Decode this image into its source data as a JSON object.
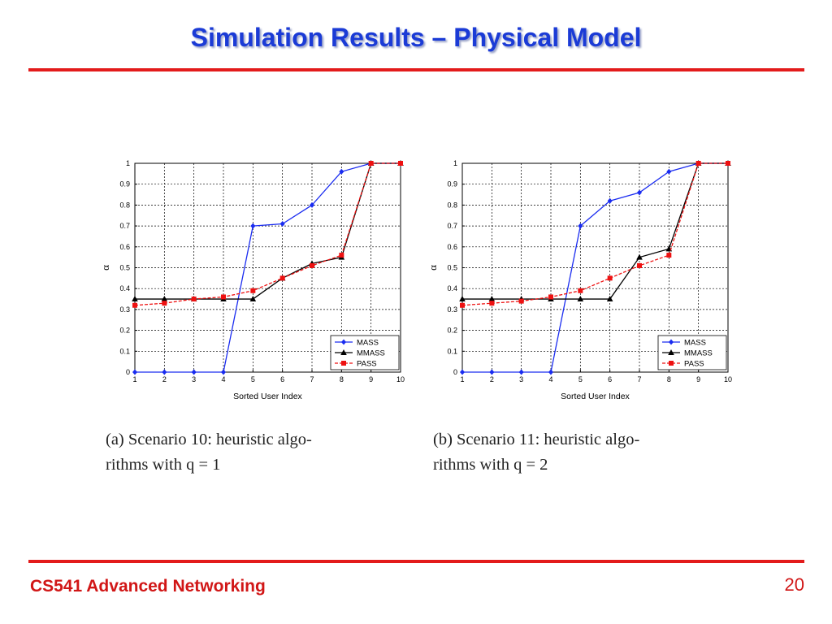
{
  "slide": {
    "title": "Simulation Results – Physical Model",
    "footer": "CS541 Advanced Networking",
    "page_number": "20"
  },
  "colors": {
    "title": "#1b3bd6",
    "rule": "#e31b1b",
    "footer": "#d11616",
    "mass": "#1a2cf0",
    "mmass": "#000000",
    "pass": "#ee1111"
  },
  "chart_data": [
    {
      "type": "line",
      "xlabel": "Sorted User Index",
      "ylabel": "α",
      "x": [
        1,
        2,
        3,
        4,
        5,
        6,
        7,
        8,
        9,
        10
      ],
      "xticks": [
        "1",
        "2",
        "3",
        "4",
        "5",
        "6",
        "7",
        "8",
        "9",
        "10"
      ],
      "yticks": [
        "0",
        "0.1",
        "0.2",
        "0.3",
        "0.4",
        "0.5",
        "0.6",
        "0.7",
        "0.8",
        "0.9",
        "1"
      ],
      "xlim": [
        1,
        10
      ],
      "ylim": [
        0,
        1
      ],
      "grid": true,
      "legend_position": "bottom-right",
      "series": [
        {
          "name": "MASS",
          "color": "#1a2cf0",
          "marker": "diamond",
          "dash": "solid",
          "values": [
            0,
            0,
            0,
            0,
            0.7,
            0.71,
            0.8,
            0.96,
            1.0,
            1.0
          ]
        },
        {
          "name": "MMASS",
          "color": "#000000",
          "marker": "triangle",
          "dash": "solid",
          "values": [
            0.35,
            0.35,
            0.35,
            0.35,
            0.35,
            0.45,
            0.52,
            0.55,
            1.0,
            1.0
          ]
        },
        {
          "name": "PASS",
          "color": "#ee1111",
          "marker": "square",
          "dash": "dashed",
          "values": [
            0.32,
            0.33,
            0.35,
            0.36,
            0.39,
            0.45,
            0.51,
            0.56,
            1.0,
            1.0
          ]
        }
      ],
      "caption": [
        "(a) Scenario 10: heuristic algo-",
        "rithms with q = 1"
      ]
    },
    {
      "type": "line",
      "xlabel": "Sorted User Index",
      "ylabel": "α",
      "x": [
        1,
        2,
        3,
        4,
        5,
        6,
        7,
        8,
        9,
        10
      ],
      "xticks": [
        "1",
        "2",
        "3",
        "4",
        "5",
        "6",
        "7",
        "8",
        "9",
        "10"
      ],
      "yticks": [
        "0",
        "0.1",
        "0.2",
        "0.3",
        "0.4",
        "0.5",
        "0.6",
        "0.7",
        "0.8",
        "0.9",
        "1"
      ],
      "xlim": [
        1,
        10
      ],
      "ylim": [
        0,
        1
      ],
      "grid": true,
      "legend_position": "bottom-right",
      "series": [
        {
          "name": "MASS",
          "color": "#1a2cf0",
          "marker": "diamond",
          "dash": "solid",
          "values": [
            0,
            0,
            0,
            0,
            0.7,
            0.82,
            0.86,
            0.96,
            1.0,
            1.0
          ]
        },
        {
          "name": "MMASS",
          "color": "#000000",
          "marker": "triangle",
          "dash": "solid",
          "values": [
            0.35,
            0.35,
            0.35,
            0.35,
            0.35,
            0.35,
            0.55,
            0.59,
            1.0,
            1.0
          ]
        },
        {
          "name": "PASS",
          "color": "#ee1111",
          "marker": "square",
          "dash": "dashed",
          "values": [
            0.32,
            0.33,
            0.34,
            0.36,
            0.39,
            0.45,
            0.51,
            0.56,
            1.0,
            1.0
          ]
        }
      ],
      "caption": [
        "(b) Scenario 11: heuristic algo-",
        "rithms with q = 2"
      ]
    }
  ]
}
